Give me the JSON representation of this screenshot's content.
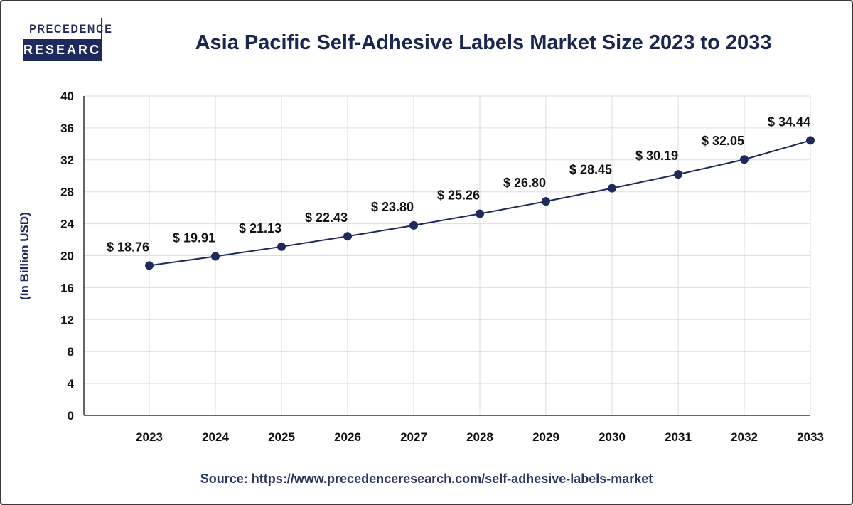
{
  "logo": {
    "line1": "PRECEDENCE",
    "line2": "RESEARCH"
  },
  "title": "Asia Pacific Self-Adhesive Labels Market Size 2023 to 2033",
  "source": "Source: https://www.precedenceresearch.com/self-adhesive-labels-market",
  "colors": {
    "line": "#1f2a5c",
    "grid": "#dddddd",
    "text": "#111111"
  },
  "chart_data": {
    "type": "line",
    "title": "Asia Pacific Self-Adhesive Labels Market Size 2023 to 2033",
    "xlabel": "",
    "ylabel": "(In Billion USD)",
    "ylim": [
      0,
      40
    ],
    "yticks": [
      0,
      4,
      8,
      12,
      16,
      20,
      24,
      28,
      32,
      36,
      40
    ],
    "categories": [
      "2023",
      "2024",
      "2025",
      "2026",
      "2027",
      "2028",
      "2029",
      "2030",
      "2031",
      "2032",
      "2033"
    ],
    "values": [
      18.76,
      19.91,
      21.13,
      22.43,
      23.8,
      25.26,
      26.8,
      28.45,
      30.19,
      32.05,
      34.44
    ],
    "labels": [
      "$ 18.76",
      "$ 19.91",
      "$ 21.13",
      "$ 22.43",
      "$ 23.80",
      "$ 25.26",
      "$ 26.80",
      "$ 28.45",
      "$ 30.19",
      "$ 32.05",
      "$ 34.44"
    ],
    "grid": true
  }
}
